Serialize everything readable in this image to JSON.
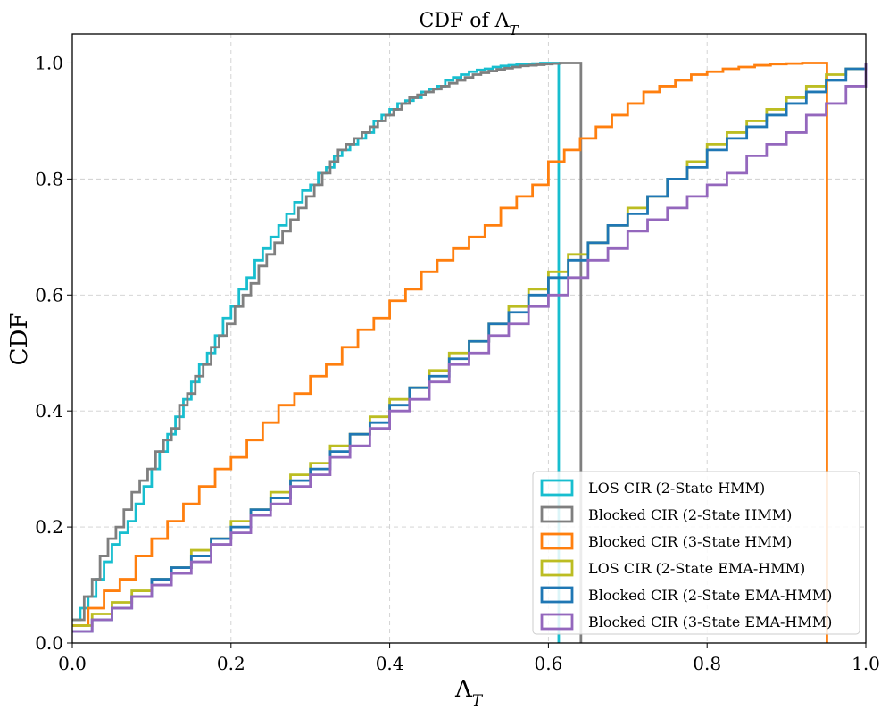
{
  "chart_data": {
    "type": "line",
    "title": "CDF of Λ_T",
    "title_main": "CDF of Λ",
    "title_sub": "T",
    "xlabel": "Λ_T",
    "xlabel_main": "Λ",
    "xlabel_sub": "T",
    "ylabel": "CDF",
    "xlim": [
      0.0,
      1.0
    ],
    "ylim": [
      0.0,
      1.05
    ],
    "xticks": [
      0.0,
      0.2,
      0.4,
      0.6,
      0.8,
      1.0
    ],
    "yticks": [
      0.0,
      0.2,
      0.4,
      0.6,
      0.8,
      1.0
    ],
    "xtick_labels": [
      "0.0",
      "0.2",
      "0.4",
      "0.6",
      "0.8",
      "1.0"
    ],
    "ytick_labels": [
      "0.0",
      "0.2",
      "0.4",
      "0.6",
      "0.8",
      "1.0"
    ],
    "grid": true,
    "legend_position": "bottom-right",
    "series": [
      {
        "name": "LOS CIR (2-State HMM)",
        "color": "#17becf",
        "x": [
          0.0,
          0.01,
          0.02,
          0.03,
          0.04,
          0.05,
          0.06,
          0.07,
          0.08,
          0.09,
          0.1,
          0.11,
          0.12,
          0.13,
          0.14,
          0.15,
          0.16,
          0.17,
          0.18,
          0.19,
          0.2,
          0.21,
          0.22,
          0.23,
          0.24,
          0.25,
          0.26,
          0.27,
          0.28,
          0.29,
          0.3,
          0.31,
          0.32,
          0.33,
          0.34,
          0.35,
          0.36,
          0.37,
          0.38,
          0.39,
          0.4,
          0.41,
          0.42,
          0.43,
          0.44,
          0.45,
          0.46,
          0.47,
          0.48,
          0.49,
          0.5,
          0.51,
          0.52,
          0.53,
          0.54,
          0.55,
          0.56,
          0.57,
          0.58,
          0.59,
          0.6,
          0.613
        ],
        "values": [
          0.04,
          0.06,
          0.08,
          0.11,
          0.14,
          0.17,
          0.19,
          0.21,
          0.24,
          0.27,
          0.3,
          0.33,
          0.36,
          0.39,
          0.42,
          0.45,
          0.48,
          0.5,
          0.53,
          0.56,
          0.58,
          0.61,
          0.63,
          0.66,
          0.68,
          0.7,
          0.72,
          0.74,
          0.76,
          0.78,
          0.79,
          0.81,
          0.82,
          0.84,
          0.85,
          0.86,
          0.87,
          0.88,
          0.9,
          0.91,
          0.92,
          0.93,
          0.935,
          0.94,
          0.95,
          0.955,
          0.96,
          0.97,
          0.975,
          0.98,
          0.985,
          0.988,
          0.99,
          0.993,
          0.995,
          0.996,
          0.997,
          0.998,
          0.999,
          1.0,
          1.0,
          0.0
        ]
      },
      {
        "name": "Blocked CIR (2-State HMM)",
        "color": "#7f7f7f",
        "x": [
          0.0,
          0.015,
          0.025,
          0.035,
          0.045,
          0.055,
          0.065,
          0.075,
          0.085,
          0.095,
          0.105,
          0.115,
          0.125,
          0.135,
          0.145,
          0.155,
          0.165,
          0.175,
          0.185,
          0.195,
          0.205,
          0.215,
          0.225,
          0.235,
          0.245,
          0.255,
          0.265,
          0.275,
          0.285,
          0.295,
          0.305,
          0.315,
          0.325,
          0.335,
          0.345,
          0.355,
          0.365,
          0.375,
          0.385,
          0.395,
          0.405,
          0.415,
          0.425,
          0.435,
          0.445,
          0.455,
          0.465,
          0.475,
          0.485,
          0.495,
          0.505,
          0.515,
          0.525,
          0.535,
          0.545,
          0.555,
          0.565,
          0.575,
          0.585,
          0.595,
          0.605,
          0.615,
          0.625,
          0.641
        ],
        "values": [
          0.04,
          0.08,
          0.11,
          0.15,
          0.18,
          0.2,
          0.23,
          0.26,
          0.28,
          0.3,
          0.33,
          0.35,
          0.37,
          0.41,
          0.43,
          0.46,
          0.48,
          0.51,
          0.53,
          0.55,
          0.58,
          0.6,
          0.62,
          0.65,
          0.67,
          0.69,
          0.71,
          0.73,
          0.75,
          0.77,
          0.79,
          0.81,
          0.83,
          0.85,
          0.86,
          0.87,
          0.88,
          0.89,
          0.9,
          0.91,
          0.92,
          0.93,
          0.94,
          0.945,
          0.95,
          0.955,
          0.96,
          0.965,
          0.97,
          0.975,
          0.98,
          0.983,
          0.986,
          0.989,
          0.991,
          0.993,
          0.995,
          0.996,
          0.997,
          0.998,
          0.999,
          1.0,
          1.0,
          0.0
        ]
      },
      {
        "name": "Blocked CIR (3-State HMM)",
        "color": "#ff7f0e",
        "x": [
          0.0,
          0.02,
          0.04,
          0.06,
          0.08,
          0.1,
          0.12,
          0.14,
          0.16,
          0.18,
          0.2,
          0.22,
          0.24,
          0.26,
          0.28,
          0.3,
          0.32,
          0.34,
          0.36,
          0.38,
          0.4,
          0.42,
          0.44,
          0.46,
          0.48,
          0.5,
          0.52,
          0.54,
          0.56,
          0.58,
          0.6,
          0.62,
          0.64,
          0.66,
          0.68,
          0.7,
          0.72,
          0.74,
          0.76,
          0.78,
          0.8,
          0.82,
          0.84,
          0.86,
          0.88,
          0.9,
          0.92,
          0.94,
          0.951
        ],
        "values": [
          0.03,
          0.06,
          0.09,
          0.11,
          0.15,
          0.18,
          0.21,
          0.24,
          0.27,
          0.3,
          0.32,
          0.35,
          0.38,
          0.41,
          0.43,
          0.46,
          0.48,
          0.51,
          0.54,
          0.56,
          0.59,
          0.61,
          0.64,
          0.66,
          0.68,
          0.7,
          0.72,
          0.75,
          0.77,
          0.79,
          0.83,
          0.85,
          0.87,
          0.89,
          0.91,
          0.93,
          0.95,
          0.96,
          0.97,
          0.98,
          0.985,
          0.99,
          0.993,
          0.996,
          0.998,
          0.999,
          1.0,
          1.0,
          0.0
        ]
      },
      {
        "name": "LOS CIR (2-State EMA-HMM)",
        "color": "#bcbd22",
        "x": [
          0.0,
          0.025,
          0.05,
          0.075,
          0.1,
          0.125,
          0.15,
          0.175,
          0.2,
          0.225,
          0.25,
          0.275,
          0.3,
          0.325,
          0.35,
          0.375,
          0.4,
          0.425,
          0.45,
          0.475,
          0.5,
          0.525,
          0.55,
          0.575,
          0.6,
          0.625,
          0.65,
          0.675,
          0.7,
          0.725,
          0.75,
          0.775,
          0.8,
          0.825,
          0.85,
          0.875,
          0.9,
          0.925,
          0.95,
          0.975,
          1.0
        ],
        "values": [
          0.03,
          0.05,
          0.07,
          0.09,
          0.11,
          0.13,
          0.16,
          0.18,
          0.21,
          0.23,
          0.26,
          0.29,
          0.31,
          0.34,
          0.36,
          0.39,
          0.42,
          0.44,
          0.47,
          0.5,
          0.52,
          0.55,
          0.58,
          0.61,
          0.64,
          0.67,
          0.69,
          0.72,
          0.75,
          0.77,
          0.8,
          0.83,
          0.86,
          0.88,
          0.9,
          0.92,
          0.94,
          0.96,
          0.98,
          0.99,
          1.0
        ]
      },
      {
        "name": "Blocked CIR (2-State EMA-HMM)",
        "color": "#1f77b4",
        "x": [
          0.0,
          0.025,
          0.05,
          0.075,
          0.1,
          0.125,
          0.15,
          0.175,
          0.2,
          0.225,
          0.25,
          0.275,
          0.3,
          0.325,
          0.35,
          0.375,
          0.4,
          0.425,
          0.45,
          0.475,
          0.5,
          0.525,
          0.55,
          0.575,
          0.6,
          0.625,
          0.65,
          0.675,
          0.7,
          0.725,
          0.75,
          0.775,
          0.8,
          0.825,
          0.85,
          0.875,
          0.9,
          0.925,
          0.95,
          0.975,
          1.0
        ],
        "values": [
          0.02,
          0.04,
          0.06,
          0.08,
          0.11,
          0.13,
          0.15,
          0.18,
          0.2,
          0.23,
          0.25,
          0.28,
          0.3,
          0.33,
          0.36,
          0.38,
          0.41,
          0.44,
          0.46,
          0.49,
          0.52,
          0.55,
          0.57,
          0.6,
          0.63,
          0.66,
          0.69,
          0.72,
          0.74,
          0.77,
          0.8,
          0.82,
          0.85,
          0.87,
          0.89,
          0.91,
          0.93,
          0.95,
          0.97,
          0.99,
          1.0
        ]
      },
      {
        "name": "Blocked CIR (3-State EMA-HMM)",
        "color": "#9467bd",
        "x": [
          0.0,
          0.025,
          0.05,
          0.075,
          0.1,
          0.125,
          0.15,
          0.175,
          0.2,
          0.225,
          0.25,
          0.275,
          0.3,
          0.325,
          0.35,
          0.375,
          0.4,
          0.425,
          0.45,
          0.475,
          0.5,
          0.525,
          0.55,
          0.575,
          0.6,
          0.625,
          0.65,
          0.675,
          0.7,
          0.725,
          0.75,
          0.775,
          0.8,
          0.825,
          0.85,
          0.875,
          0.9,
          0.925,
          0.95,
          0.975,
          1.0
        ],
        "values": [
          0.02,
          0.04,
          0.06,
          0.08,
          0.1,
          0.12,
          0.14,
          0.17,
          0.19,
          0.22,
          0.24,
          0.27,
          0.29,
          0.32,
          0.34,
          0.37,
          0.4,
          0.42,
          0.45,
          0.48,
          0.5,
          0.53,
          0.55,
          0.58,
          0.6,
          0.63,
          0.66,
          0.68,
          0.71,
          0.73,
          0.75,
          0.77,
          0.79,
          0.81,
          0.84,
          0.86,
          0.88,
          0.91,
          0.93,
          0.96,
          1.0
        ]
      }
    ]
  }
}
